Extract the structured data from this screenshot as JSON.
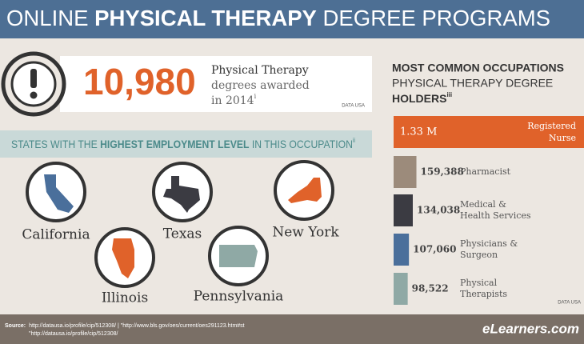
{
  "header": {
    "title_parts": [
      "ONLINE ",
      "PHYSICAL THERAPY",
      " DEGREE PROGRAMS"
    ]
  },
  "stat": {
    "number": "10,980",
    "line1": "Physical Therapy",
    "line2": "degrees awarded",
    "line3": "in 2014",
    "note": "i",
    "source": "DATA USA"
  },
  "states": {
    "heading_parts": [
      "STATES WITH THE ",
      "HIGHEST EMPLOYMENT LEVEL",
      " IN THIS OCCUPATION"
    ],
    "note": "ii",
    "names": [
      "California",
      "Texas",
      "New York",
      "Illinois",
      "Pennsylvania"
    ]
  },
  "chart_data": {
    "type": "bar",
    "orientation": "horizontal",
    "title_lines": [
      "MOST COMMON OCCUPATIONS",
      "PHYSICAL THERAPY DEGREE",
      "HOLDERS"
    ],
    "title_note": "iii",
    "categories": [
      "Registered Nurse",
      "Pharmacist",
      "Medical & Health Services",
      "Physicians & Surgeon",
      "Physical Therapists"
    ],
    "values": [
      1330000,
      159388,
      134038,
      107060,
      98522
    ],
    "value_labels": [
      "1.33 M",
      "159,388",
      "134,038",
      "107,060",
      "98,522"
    ],
    "colors": [
      "#e0622a",
      "#9c8b7b",
      "#3b3b42",
      "#4a6f9b",
      "#8fa9a5"
    ],
    "source": "DATA USA"
  },
  "footer": {
    "source_label": "Source:",
    "line1": "http://datausa.io/profile/cip/512308/  |  \"http://www.bls.gov/oes/current/oes291123.htm#st",
    "line2": "\"http://datausa.io/profile/cip/512308/",
    "logo": "eLearners.com"
  }
}
